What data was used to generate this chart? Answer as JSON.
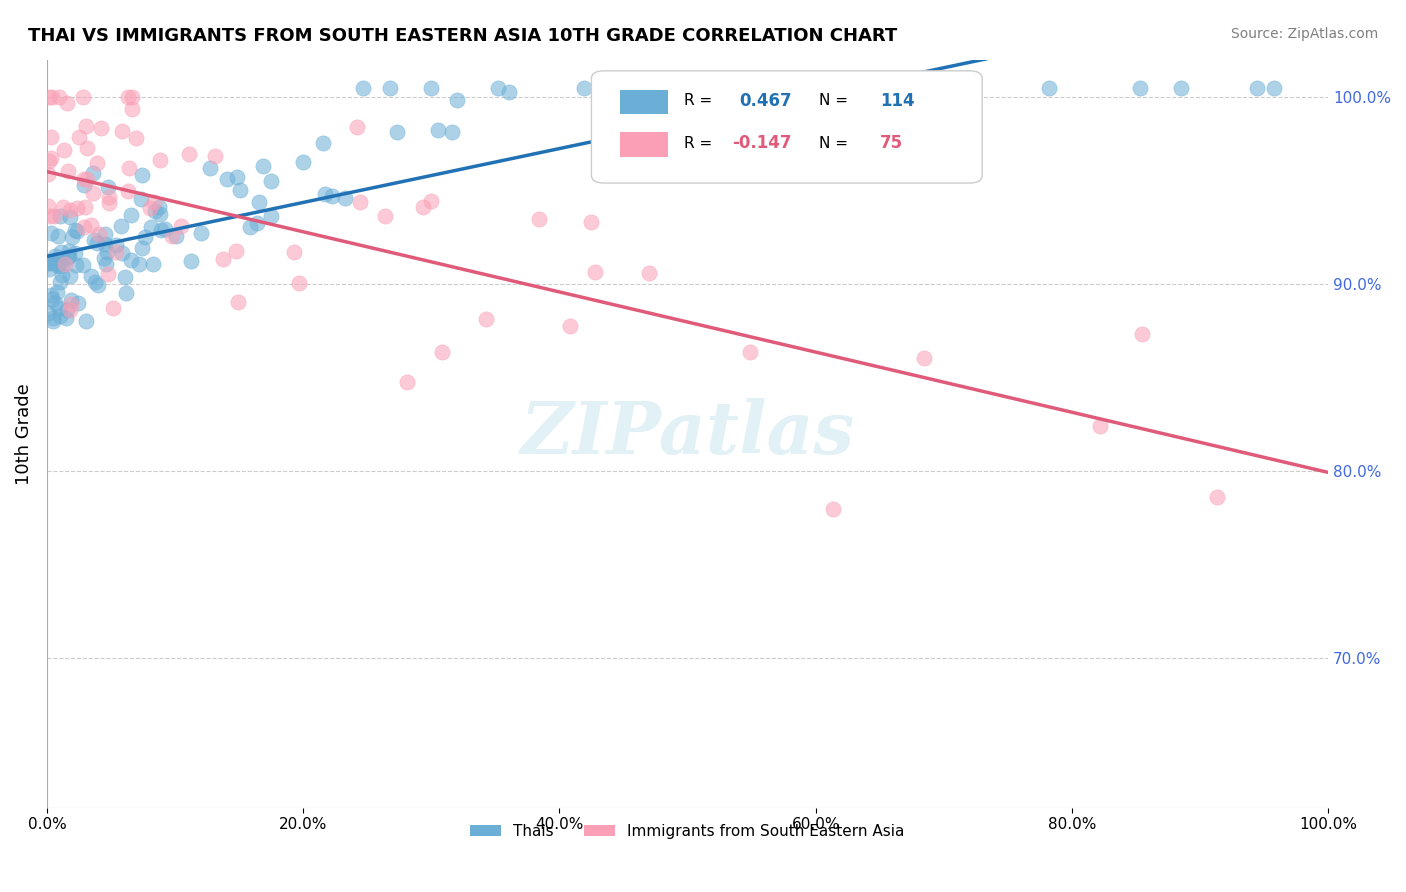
{
  "title": "THAI VS IMMIGRANTS FROM SOUTH EASTERN ASIA 10TH GRADE CORRELATION CHART",
  "source": "Source: ZipAtlas.com",
  "xlabel": "",
  "ylabel": "10th Grade",
  "blue_label": "Thais",
  "pink_label": "Immigrants from South Eastern Asia",
  "blue_R": 0.467,
  "blue_N": 114,
  "pink_R": -0.147,
  "pink_N": 75,
  "xlim": [
    0.0,
    1.0
  ],
  "ylim": [
    0.62,
    1.02
  ],
  "blue_color": "#6baed6",
  "blue_line_color": "#2171b5",
  "pink_color": "#fa9fb5",
  "pink_line_color": "#e05a7a",
  "background_color": "#ffffff"
}
